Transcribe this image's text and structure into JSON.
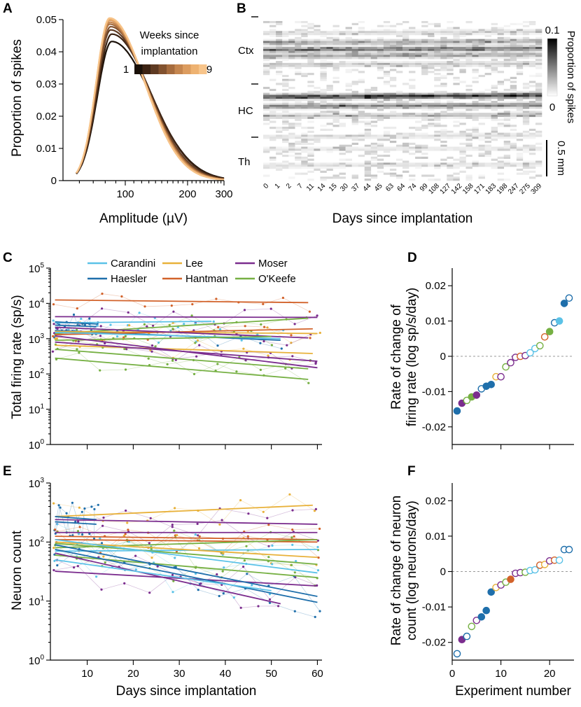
{
  "chart_data": [
    {
      "panel": "A",
      "type": "line",
      "xlabel": "Amplitude (µV)",
      "ylabel": "Proportion of spikes",
      "x_scale": "log",
      "xlim": [
        50,
        300
      ],
      "ylim": [
        0,
        0.05
      ],
      "x_ticks": [
        "100",
        "200",
        "300"
      ],
      "y_ticks": [
        "0",
        "0.01",
        "0.02",
        "0.03",
        "0.04",
        "0.05"
      ],
      "legend_title": "Weeks since implantation",
      "colorbar_min": "1",
      "colorbar_max": "9",
      "colors": [
        "#1a1008",
        "#3c2313",
        "#5e3a22",
        "#82522f",
        "#a66c3e",
        "#c5864f",
        "#dc9c5f",
        "#eeb271",
        "#f7c48a"
      ],
      "series": [
        {
          "name": "week 1",
          "peak_x": 86,
          "peak_y": 0.0432,
          "sigma_left": 0.16,
          "sigma_right": 0.44
        },
        {
          "name": "week 2",
          "peak_x": 86,
          "peak_y": 0.0455,
          "sigma_left": 0.16,
          "sigma_right": 0.43
        },
        {
          "name": "week 3",
          "peak_x": 85,
          "peak_y": 0.0468,
          "sigma_left": 0.155,
          "sigma_right": 0.42
        },
        {
          "name": "week 4",
          "peak_x": 85,
          "peak_y": 0.0478,
          "sigma_left": 0.155,
          "sigma_right": 0.41
        },
        {
          "name": "week 5",
          "peak_x": 84,
          "peak_y": 0.0486,
          "sigma_left": 0.15,
          "sigma_right": 0.41
        },
        {
          "name": "week 6",
          "peak_x": 84,
          "peak_y": 0.0492,
          "sigma_left": 0.15,
          "sigma_right": 0.4
        },
        {
          "name": "week 7",
          "peak_x": 84,
          "peak_y": 0.0498,
          "sigma_left": 0.15,
          "sigma_right": 0.4
        },
        {
          "name": "week 8",
          "peak_x": 84,
          "peak_y": 0.0502,
          "sigma_left": 0.15,
          "sigma_right": 0.39
        },
        {
          "name": "week 9",
          "peak_x": 84,
          "peak_y": 0.0505,
          "sigma_left": 0.15,
          "sigma_right": 0.39
        }
      ]
    },
    {
      "panel": "B",
      "type": "heatmap",
      "xlabel": "Days since implantation",
      "x_ticks": [
        "0",
        "1",
        "2",
        "7",
        "11",
        "14",
        "15",
        "30",
        "37",
        "44",
        "45",
        "63",
        "64",
        "74",
        "99",
        "108",
        "127",
        "142",
        "158",
        "171",
        "183",
        "198",
        "247",
        "275",
        "309"
      ],
      "region_labels": [
        "Ctx",
        "HC",
        "Th"
      ],
      "colorbar_label": "Proportion of spikes",
      "colorbar_max": "0.1",
      "colorbar_min": "0",
      "scale_bar_label": "0.5 mm",
      "bands": [
        {
          "region": "Ctx",
          "depth": 0.07,
          "intensity": 0.15
        },
        {
          "region": "Ctx",
          "depth": 0.13,
          "intensity": 0.35
        },
        {
          "region": "Ctx",
          "depth": 0.175,
          "intensity": 0.6
        },
        {
          "region": "Ctx",
          "depth": 0.215,
          "intensity": 0.35
        },
        {
          "region": "Ctx",
          "depth": 0.27,
          "intensity": 0.2
        },
        {
          "region": "HC",
          "depth": 0.47,
          "intensity": 0.85
        },
        {
          "region": "HC",
          "depth": 0.53,
          "intensity": 0.5
        },
        {
          "region": "HC",
          "depth": 0.59,
          "intensity": 0.25
        },
        {
          "region": "Th",
          "depth": 0.72,
          "intensity": 0.12
        },
        {
          "region": "Th",
          "depth": 0.8,
          "intensity": 0.1
        },
        {
          "region": "Th",
          "depth": 0.9,
          "intensity": 0.12
        }
      ]
    },
    {
      "panel": "C",
      "type": "scatter",
      "xlabel": "",
      "ylabel": "Total firing rate (sp/s)",
      "y_scale": "log",
      "ylim_exp": [
        0,
        5
      ],
      "xlim": [
        2,
        61
      ],
      "y_tick_base": "10",
      "y_tick_exps": [
        "0",
        "1",
        "2",
        "3",
        "4",
        "5"
      ],
      "legend": [
        {
          "name": "Carandini",
          "color": "#5bc2e7"
        },
        {
          "name": "Lee",
          "color": "#e8b13a"
        },
        {
          "name": "Moser",
          "color": "#7b2d8e"
        },
        {
          "name": "Haesler",
          "color": "#1f6fab"
        },
        {
          "name": "Hantman",
          "color": "#d2622a"
        },
        {
          "name": "O'Keefe",
          "color": "#76b043"
        }
      ],
      "fits": [
        {
          "lab": "Hantman",
          "x": [
            3,
            58
          ],
          "y": [
            12500,
            10500
          ]
        },
        {
          "lab": "Moser",
          "x": [
            3,
            60
          ],
          "y": [
            4200,
            4000
          ]
        },
        {
          "lab": "O'Keefe",
          "x": [
            3,
            58
          ],
          "y": [
            1400,
            3800
          ]
        },
        {
          "lab": "Carandini",
          "x": [
            3,
            37
          ],
          "y": [
            2800,
            3100
          ]
        },
        {
          "lab": "Haesler",
          "x": [
            3,
            12
          ],
          "y": [
            2400,
            2200
          ]
        },
        {
          "lab": "Haesler",
          "x": [
            3,
            12
          ],
          "y": [
            3000,
            2600
          ]
        },
        {
          "lab": "Haesler",
          "x": [
            3,
            52
          ],
          "y": [
            1700,
            900
          ]
        },
        {
          "lab": "Lee",
          "x": [
            3,
            60
          ],
          "y": [
            1600,
            1400
          ]
        },
        {
          "lab": "Hantman",
          "x": [
            3,
            59
          ],
          "y": [
            1300,
            1900
          ]
        },
        {
          "lab": "Carandini",
          "x": [
            3,
            52
          ],
          "y": [
            1500,
            1000
          ]
        },
        {
          "lab": "Moser",
          "x": [
            3,
            58
          ],
          "y": [
            2100,
            1050
          ]
        },
        {
          "lab": "O'Keefe",
          "x": [
            3,
            50
          ],
          "y": [
            900,
            1150
          ]
        },
        {
          "lab": "Lee",
          "x": [
            3,
            59
          ],
          "y": [
            650,
            380
          ]
        },
        {
          "lab": "Moser",
          "x": [
            3,
            60
          ],
          "y": [
            1200,
            150
          ]
        },
        {
          "lab": "Moser",
          "x": [
            3,
            60
          ],
          "y": [
            800,
            230
          ]
        },
        {
          "lab": "O'Keefe",
          "x": [
            3,
            58
          ],
          "y": [
            280,
            70
          ]
        },
        {
          "lab": "O'Keefe",
          "x": [
            3,
            58
          ],
          "y": [
            500,
            140
          ]
        }
      ]
    },
    {
      "panel": "D",
      "type": "scatter",
      "xlabel": "",
      "ylabel": "Rate of change of firing rate (log sp/s/day)",
      "ylabel_lines": [
        "Rate of change of",
        "firing rate (log sp/s/day)"
      ],
      "xlim": [
        0,
        25
      ],
      "ylim": [
        -0.025,
        0.025
      ],
      "y_ticks": [
        "0.02",
        "0.01",
        "0",
        "-0.01",
        "-0.02"
      ],
      "points": [
        {
          "n": 1,
          "y": -0.0155,
          "lab": "Haesler",
          "filled": true
        },
        {
          "n": 2,
          "y": -0.0133,
          "lab": "Moser",
          "filled": true
        },
        {
          "n": 3,
          "y": -0.0125,
          "lab": "O'Keefe",
          "filled": false
        },
        {
          "n": 4,
          "y": -0.0115,
          "lab": "O'Keefe",
          "filled": true
        },
        {
          "n": 5,
          "y": -0.011,
          "lab": "Moser",
          "filled": true
        },
        {
          "n": 6,
          "y": -0.0092,
          "lab": "Haesler",
          "filled": false
        },
        {
          "n": 7,
          "y": -0.0085,
          "lab": "Haesler",
          "filled": true
        },
        {
          "n": 8,
          "y": -0.008,
          "lab": "Haesler",
          "filled": true
        },
        {
          "n": 9,
          "y": -0.0058,
          "lab": "Lee",
          "filled": false
        },
        {
          "n": 10,
          "y": -0.0058,
          "lab": "Moser",
          "filled": false
        },
        {
          "n": 11,
          "y": -0.003,
          "lab": "O'Keefe",
          "filled": false
        },
        {
          "n": 12,
          "y": -0.0018,
          "lab": "Moser",
          "filled": false
        },
        {
          "n": 13,
          "y": -0.0003,
          "lab": "Moser",
          "filled": false
        },
        {
          "n": 14,
          "y": 0.0,
          "lab": "Hantman",
          "filled": false
        },
        {
          "n": 15,
          "y": 0.0002,
          "lab": "Moser",
          "filled": false
        },
        {
          "n": 16,
          "y": 0.001,
          "lab": "Carandini",
          "filled": false
        },
        {
          "n": 17,
          "y": 0.0022,
          "lab": "Carandini",
          "filled": false
        },
        {
          "n": 18,
          "y": 0.003,
          "lab": "O'Keefe",
          "filled": false
        },
        {
          "n": 19,
          "y": 0.0055,
          "lab": "Hantman",
          "filled": false
        },
        {
          "n": 20,
          "y": 0.007,
          "lab": "O'Keefe",
          "filled": true
        },
        {
          "n": 21,
          "y": 0.0095,
          "lab": "Haesler",
          "filled": false
        },
        {
          "n": 22,
          "y": 0.01,
          "lab": "Carandini",
          "filled": true
        },
        {
          "n": 23,
          "y": 0.015,
          "lab": "Haesler",
          "filled": true
        },
        {
          "n": 24,
          "y": 0.0165,
          "lab": "Haesler",
          "filled": false
        }
      ]
    },
    {
      "panel": "E",
      "type": "scatter",
      "xlabel": "Days since implantation",
      "ylabel": "Neuron count",
      "y_scale": "log",
      "ylim_exp": [
        0,
        3
      ],
      "xlim": [
        2,
        61
      ],
      "x_ticks": [
        "10",
        "20",
        "30",
        "40",
        "50",
        "60"
      ],
      "y_tick_base": "10",
      "y_tick_exps": [
        "0",
        "1",
        "2",
        "3"
      ],
      "fits": [
        {
          "lab": "Lee",
          "x": [
            3,
            59
          ],
          "y": [
            270,
            420
          ]
        },
        {
          "lab": "Haesler",
          "x": [
            3,
            12
          ],
          "y": [
            270,
            240
          ]
        },
        {
          "lab": "Haesler",
          "x": [
            3,
            12
          ],
          "y": [
            220,
            200
          ]
        },
        {
          "lab": "Moser",
          "x": [
            3,
            60
          ],
          "y": [
            240,
            200
          ]
        },
        {
          "lab": "Moser",
          "x": [
            3,
            60
          ],
          "y": [
            145,
            145
          ]
        },
        {
          "lab": "Hantman",
          "x": [
            3,
            60
          ],
          "y": [
            125,
            110
          ]
        },
        {
          "lab": "Hantman",
          "x": [
            3,
            60
          ],
          "y": [
            110,
            100
          ]
        },
        {
          "lab": "O'Keefe",
          "x": [
            3,
            60
          ],
          "y": [
            80,
            110
          ]
        },
        {
          "lab": "Carandini",
          "x": [
            3,
            60
          ],
          "y": [
            70,
            75
          ]
        },
        {
          "lab": "Lee",
          "x": [
            3,
            60
          ],
          "y": [
            100,
            55
          ]
        },
        {
          "lab": "O'Keefe",
          "x": [
            3,
            60
          ],
          "y": [
            95,
            42
          ]
        },
        {
          "lab": "Carandini",
          "x": [
            3,
            60
          ],
          "y": [
            110,
            30
          ]
        },
        {
          "lab": "O'Keefe",
          "x": [
            3,
            60
          ],
          "y": [
            60,
            25
          ]
        },
        {
          "lab": "Moser",
          "x": [
            3,
            60
          ],
          "y": [
            32,
            18
          ]
        },
        {
          "lab": "Haesler",
          "x": [
            3,
            60
          ],
          "y": [
            90,
            12
          ]
        },
        {
          "lab": "Haesler",
          "x": [
            3,
            60
          ],
          "y": [
            75,
            9.5
          ]
        },
        {
          "lab": "Moser",
          "x": [
            3,
            52
          ],
          "y": [
            65,
            9
          ]
        },
        {
          "lab": "Carandini",
          "x": [
            3,
            50
          ],
          "y": [
            50,
            15
          ]
        }
      ]
    },
    {
      "panel": "F",
      "type": "scatter",
      "xlabel": "Experiment number",
      "ylabel": "Rate of change of neuron count (log neurons/day)",
      "ylabel_lines": [
        "Rate of change of neuron",
        "count (log neurons/day)"
      ],
      "xlim": [
        0,
        25
      ],
      "ylim": [
        -0.025,
        0.025
      ],
      "x_ticks": [
        "0",
        "10",
        "20"
      ],
      "y_ticks": [
        "0.02",
        "0.01",
        "0",
        "-0.01",
        "-0.02"
      ],
      "points": [
        {
          "n": 1,
          "y": -0.0232,
          "lab": "Haesler",
          "filled": false
        },
        {
          "n": 2,
          "y": -0.0192,
          "lab": "Moser",
          "filled": true
        },
        {
          "n": 3,
          "y": -0.0183,
          "lab": "Haesler",
          "filled": false
        },
        {
          "n": 4,
          "y": -0.0155,
          "lab": "O'Keefe",
          "filled": false
        },
        {
          "n": 5,
          "y": -0.0138,
          "lab": "Moser",
          "filled": false
        },
        {
          "n": 6,
          "y": -0.0128,
          "lab": "Haesler",
          "filled": true
        },
        {
          "n": 7,
          "y": -0.011,
          "lab": "Haesler",
          "filled": true
        },
        {
          "n": 8,
          "y": -0.0058,
          "lab": "Haesler",
          "filled": true
        },
        {
          "n": 9,
          "y": -0.0045,
          "lab": "Lee",
          "filled": false
        },
        {
          "n": 10,
          "y": -0.0038,
          "lab": "Moser",
          "filled": false
        },
        {
          "n": 11,
          "y": -0.003,
          "lab": "O'Keefe",
          "filled": false
        },
        {
          "n": 12,
          "y": -0.0022,
          "lab": "Hantman",
          "filled": true
        },
        {
          "n": 13,
          "y": -0.0005,
          "lab": "Moser",
          "filled": false
        },
        {
          "n": 14,
          "y": -0.0003,
          "lab": "Moser",
          "filled": false
        },
        {
          "n": 15,
          "y": -0.0002,
          "lab": "O'Keefe",
          "filled": false
        },
        {
          "n": 16,
          "y": 0.0003,
          "lab": "Carandini",
          "filled": false
        },
        {
          "n": 17,
          "y": 0.0005,
          "lab": "Carandini",
          "filled": false
        },
        {
          "n": 18,
          "y": 0.0018,
          "lab": "Hantman",
          "filled": false
        },
        {
          "n": 19,
          "y": 0.002,
          "lab": "Lee",
          "filled": false
        },
        {
          "n": 20,
          "y": 0.003,
          "lab": "Moser",
          "filled": false
        },
        {
          "n": 21,
          "y": 0.0032,
          "lab": "Hantman",
          "filled": false
        },
        {
          "n": 22,
          "y": 0.0032,
          "lab": "Carandini",
          "filled": false
        },
        {
          "n": 23,
          "y": 0.0062,
          "lab": "Haesler",
          "filled": false
        },
        {
          "n": 24,
          "y": 0.0062,
          "lab": "Haesler",
          "filled": false
        }
      ]
    }
  ],
  "panel_labels": [
    "A",
    "B",
    "C",
    "D",
    "E",
    "F"
  ]
}
